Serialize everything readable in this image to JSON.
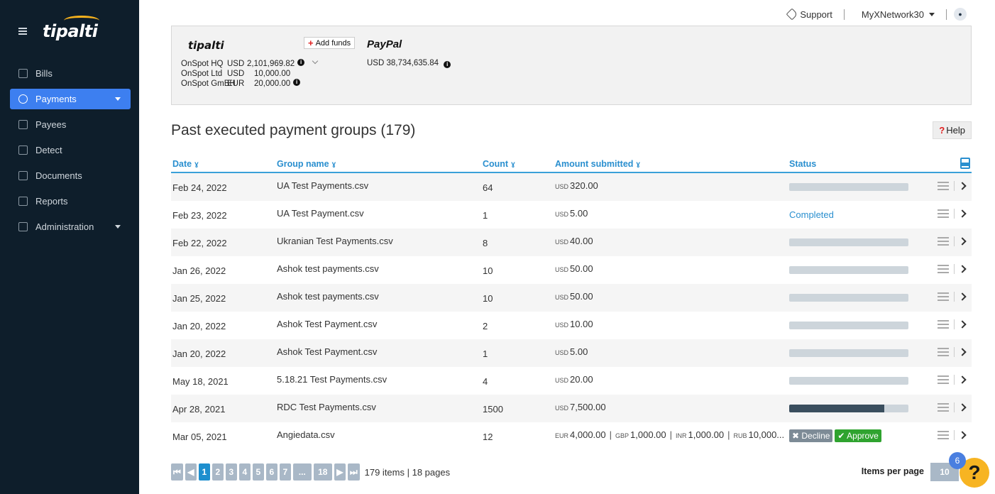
{
  "brand": {
    "logo_text": "tipalti"
  },
  "sidebar": {
    "items": [
      {
        "label": "Bills",
        "icon": "bill-icon"
      },
      {
        "label": "Payments",
        "icon": "money-bag-icon",
        "active": true
      },
      {
        "label": "Payees",
        "icon": "payees-icon"
      },
      {
        "label": "Detect",
        "icon": "detect-icon"
      },
      {
        "label": "Documents",
        "icon": "document-icon"
      },
      {
        "label": "Reports",
        "icon": "chart-icon"
      },
      {
        "label": "Administration",
        "icon": "admin-icon"
      }
    ]
  },
  "topbar": {
    "support": "Support",
    "network": "MyXNetwork30"
  },
  "funding": {
    "tipalti_logo": "tipalti",
    "add_funds": "Add funds",
    "paypal_logo": "PayPal",
    "paypal_balance": "USD 38,734,635.84",
    "accounts": [
      {
        "entity": "OnSpot HQ",
        "currency": "USD",
        "amount": "2,101,969.82"
      },
      {
        "entity": "OnSpot Ltd",
        "currency": "USD",
        "amount": "10,000.00"
      },
      {
        "entity": "OnSpot GmBH",
        "currency": "EUR",
        "amount": "20,000.00"
      }
    ]
  },
  "section": {
    "title": "Past executed payment groups (179)",
    "help": "Help"
  },
  "table": {
    "headers": {
      "date": "Date",
      "group": "Group name",
      "count": "Count",
      "amount": "Amount submitted",
      "status": "Status"
    },
    "rows": [
      {
        "date": "Feb 24, 2022",
        "group": "UA Test Payments.csv",
        "count": "64",
        "cur": "USD",
        "amount": "320.00",
        "progress": 0
      },
      {
        "date": "Feb 23, 2022",
        "group": "UA Test Payment.csv",
        "count": "1",
        "cur": "USD",
        "amount": "5.00",
        "status": "Completed"
      },
      {
        "date": "Feb 22, 2022",
        "group": "Ukranian Test Payments.csv",
        "count": "8",
        "cur": "USD",
        "amount": "40.00",
        "progress": 0
      },
      {
        "date": "Jan 26, 2022",
        "group": "Ashok test payments.csv",
        "count": "10",
        "cur": "USD",
        "amount": "50.00",
        "progress": 0
      },
      {
        "date": "Jan 25, 2022",
        "group": "Ashok test payments.csv",
        "count": "10",
        "cur": "USD",
        "amount": "50.00",
        "progress": 0
      },
      {
        "date": "Jan 20, 2022",
        "group": "Ashok Test Payment.csv",
        "count": "2",
        "cur": "USD",
        "amount": "10.00",
        "progress": 0
      },
      {
        "date": "Jan 20, 2022",
        "group": "Ashok Test Payment.csv",
        "count": "1",
        "cur": "USD",
        "amount": "5.00",
        "progress": 0
      },
      {
        "date": "May 18, 2021",
        "group": "5.18.21 Test Payments.csv",
        "count": "4",
        "cur": "USD",
        "amount": "20.00",
        "progress": 0
      },
      {
        "date": "Apr 28, 2021",
        "group": "RDC Test Payments.csv",
        "count": "1500",
        "cur": "USD",
        "amount": "7,500.00",
        "progress": 0.8
      },
      {
        "date": "Mar 05, 2021",
        "group": "Angiedata.csv",
        "count": "12",
        "multi": [
          {
            "cur": "EUR",
            "amount": "4,000.00"
          },
          {
            "cur": "GBP",
            "amount": "1,000.00"
          },
          {
            "cur": "INR",
            "amount": "1,000.00"
          },
          {
            "cur": "RUB",
            "amount": "10,000..."
          }
        ],
        "decline": "Decline",
        "approve": "Approve"
      }
    ]
  },
  "pager": {
    "pages": [
      "1",
      "2",
      "3",
      "4",
      "5",
      "6",
      "7",
      "...",
      "18"
    ],
    "info": "179 items | 18 pages",
    "items_per_page_label": "Items per page",
    "items_per_page": "10",
    "help_badge": "6"
  }
}
